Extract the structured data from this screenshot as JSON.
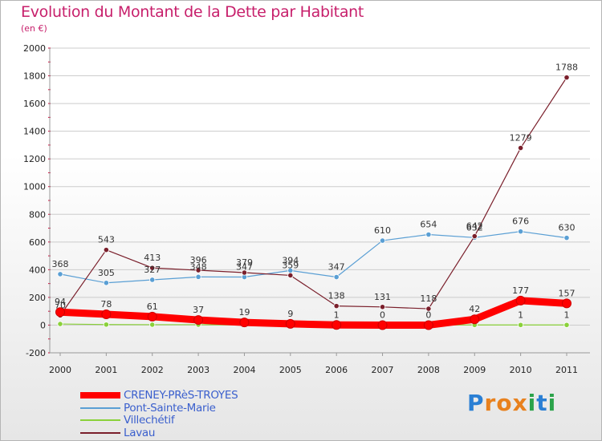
{
  "title": "Evolution du Montant de la Dette par Habitant",
  "subtitle": "(en €)",
  "colors": {
    "title": "#c71f6b",
    "legend_text": "#3a5fcd",
    "grid": "#cccccc",
    "axis_tick_red": "#cc0033"
  },
  "logo": {
    "text": "Proxiti",
    "letters": [
      "P",
      "r",
      "o",
      "x",
      "i",
      "t",
      "i"
    ],
    "colors": [
      "#2a7fd4",
      "#e8811e",
      "#e8811e",
      "#e8811e",
      "#2ba34a",
      "#2a7fd4",
      "#2ba34a"
    ]
  },
  "chart_data": {
    "type": "line",
    "title": "Evolution du Montant de la Dette par Habitant",
    "subtitle": "(en €)",
    "xlabel": "",
    "ylabel": "",
    "x": [
      "2000",
      "2001",
      "2002",
      "2003",
      "2004",
      "2005",
      "2006",
      "2007",
      "2008",
      "2009",
      "2010",
      "2011"
    ],
    "ylim": [
      -200,
      2000
    ],
    "yticks": [
      -200,
      0,
      200,
      400,
      600,
      800,
      1000,
      1200,
      1400,
      1600,
      1800,
      2000
    ],
    "yticklabels": [
      "-200",
      "0",
      "200",
      "400",
      "600",
      "800",
      "1000",
      "1200",
      "1400",
      "1600",
      "1800",
      "2000"
    ],
    "grid": "horizontal",
    "legend_position": "bottom-left",
    "series": [
      {
        "name": "CRENEY-PRèS-TROYES",
        "color": "#ff0000",
        "width": 9,
        "values": [
          94,
          78,
          61,
          37,
          19,
          9,
          1,
          0,
          0,
          42,
          177,
          157
        ],
        "labels": [
          "94",
          "78",
          "61",
          "37",
          "19",
          "9",
          "1",
          "0",
          "0",
          "42",
          "177",
          "157"
        ]
      },
      {
        "name": "Pont-Sainte-Marie",
        "color": "#5a9fd4",
        "width": 1.2,
        "values": [
          368,
          305,
          327,
          348,
          347,
          394,
          347,
          610,
          654,
          632,
          676,
          630
        ],
        "labels": [
          "368",
          "305",
          "327",
          "348",
          "347",
          "394",
          "347",
          "610",
          "654",
          "632",
          "676",
          "630"
        ]
      },
      {
        "name": "Villechétif",
        "color": "#8ad13a",
        "width": 1.2,
        "values": [
          8,
          4,
          3,
          3,
          1,
          1,
          1,
          1,
          1,
          1,
          1,
          1
        ],
        "labels": [
          "",
          "",
          "",
          "",
          "",
          "",
          "",
          "",
          "",
          "",
          "1",
          "1"
        ]
      },
      {
        "name": "Lavau",
        "color": "#7a1f2b",
        "width": 1.2,
        "values": [
          70,
          543,
          413,
          396,
          379,
          359,
          138,
          131,
          118,
          642,
          1279,
          1788
        ],
        "labels": [
          "70",
          "543",
          "413",
          "396",
          "379",
          "359",
          "138",
          "131",
          "118",
          "642",
          "1279",
          "1788"
        ]
      }
    ]
  }
}
